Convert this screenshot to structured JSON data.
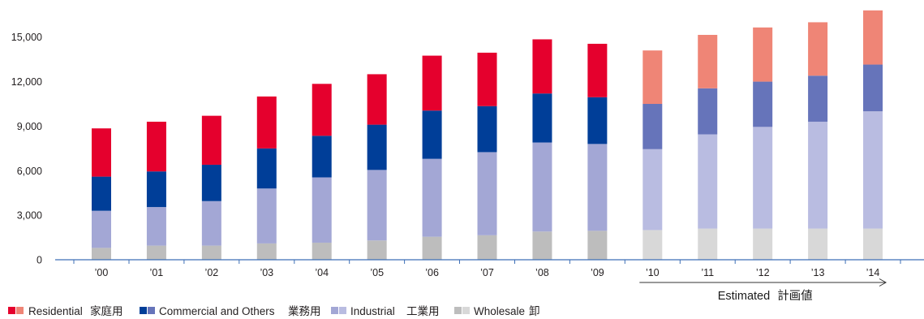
{
  "chart_data": {
    "type": "bar",
    "stacked": true,
    "categories": [
      "’00",
      "’01",
      "’02",
      "’03",
      "’04",
      "’05",
      "’06",
      "’07",
      "’08",
      "’09",
      "’10",
      "’11",
      "’12",
      "’13",
      "’14"
    ],
    "series": [
      {
        "name": "Residential",
        "name_ja": "家庭用",
        "color": "#e5002d",
        "color_estimated": "#ef8576",
        "values": [
          3250,
          3350,
          3300,
          3500,
          3500,
          3400,
          3700,
          3600,
          3650,
          3600,
          3600,
          3600,
          3650,
          3600,
          3650
        ]
      },
      {
        "name": "Commercial and Others",
        "name_ja": "業務用",
        "color": "#003e98",
        "color_estimated": "#6674ba",
        "values": [
          2300,
          2400,
          2450,
          2700,
          2800,
          3050,
          3250,
          3100,
          3300,
          3150,
          3050,
          3100,
          3050,
          3100,
          3150
        ]
      },
      {
        "name": "Industrial",
        "name_ja": "工業用",
        "color": "#a3a7d5",
        "color_estimated": "#b9bce1",
        "values": [
          2500,
          2600,
          3000,
          3700,
          4400,
          4750,
          5250,
          5600,
          6000,
          5850,
          5450,
          6350,
          6850,
          7200,
          7900
        ]
      },
      {
        "name": "Wholesale",
        "name_ja": "卸",
        "color": "#bdbdbd",
        "color_estimated": "#d8d8d8",
        "values": [
          800,
          950,
          950,
          1100,
          1150,
          1300,
          1550,
          1650,
          1900,
          1950,
          2000,
          2100,
          2100,
          2100,
          2100
        ]
      }
    ],
    "y_ticks": [
      "0",
      "3,000",
      "6,000",
      "9,000",
      "12,000",
      "15,000"
    ],
    "ylim": [
      0,
      17500
    ],
    "grid": false,
    "axis_color": "#3d6fb6",
    "estimated": {
      "label": "Estimated",
      "label_ja": "計画値",
      "flags": [
        false,
        false,
        false,
        false,
        false,
        false,
        false,
        false,
        false,
        false,
        true,
        true,
        true,
        true,
        true
      ]
    },
    "legend_position": "bottom-left"
  }
}
